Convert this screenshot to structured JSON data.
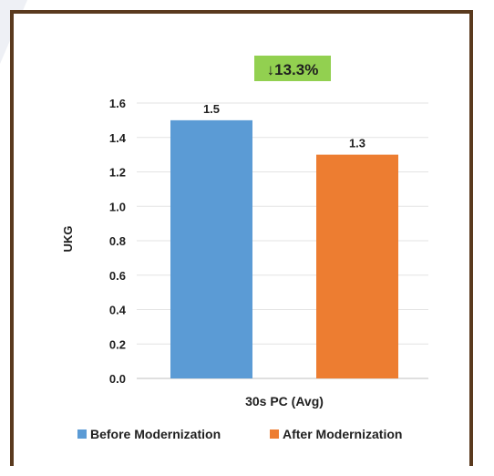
{
  "chart_data": {
    "type": "bar",
    "title": "",
    "xlabel": "",
    "ylabel": "UKG",
    "categories": [
      "30s PC (Avg)"
    ],
    "series": [
      {
        "name": "Before Modernization",
        "values": [
          1.5
        ],
        "color": "#5b9bd5"
      },
      {
        "name": "After Modernization",
        "values": [
          1.3
        ],
        "color": "#ed7d31"
      }
    ],
    "data_labels": [
      "1.5",
      "1.3"
    ],
    "ylim": [
      0,
      1.6
    ],
    "yticks": [
      "0.0",
      "0.2",
      "0.4",
      "0.6",
      "0.8",
      "1.0",
      "1.2",
      "1.4",
      "1.6"
    ],
    "grid": true,
    "legend_position": "bottom",
    "annotation": {
      "text": "↓13.3%",
      "color": "#92d050"
    }
  }
}
